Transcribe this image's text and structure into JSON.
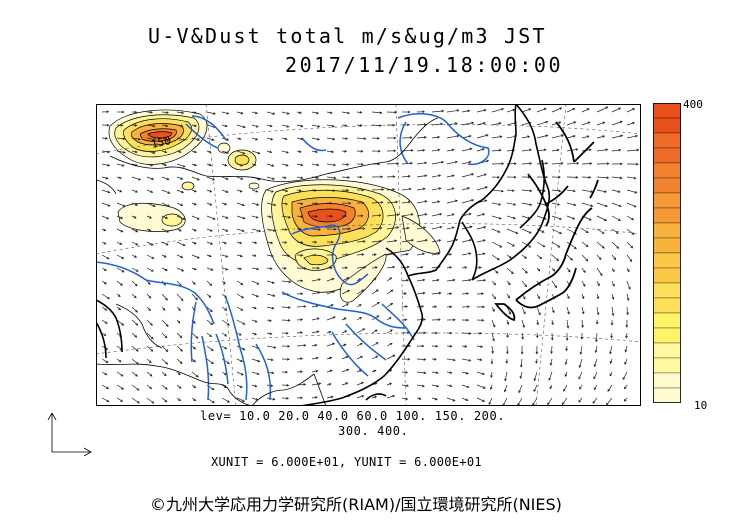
{
  "title": {
    "line1": "U-V&Dust total m/s&ug/m3 JST",
    "line2": "2017/11/19.18:00:00"
  },
  "colorbar": {
    "max_label": "400",
    "min_label": "10",
    "colors": [
      "#e8501c",
      "#f06a28",
      "#f2822e",
      "#f59a36",
      "#f8b23e",
      "#fbc848",
      "#fde05a",
      "#fff36a",
      "#fff8a0",
      "#fffad0"
    ]
  },
  "contour_levels": {
    "line1": "lev= 10.0 20.0 40.0 60.0 100. 150. 200.",
    "line2": "300. 400."
  },
  "map_labels": {
    "contour_150": "150"
  },
  "units": "XUNIT = 6.000E+01, YUNIT = 6.000E+01",
  "copyright": "©九州大学応用力学研究所(RIAM)/国立環境研究所(NIES)"
}
